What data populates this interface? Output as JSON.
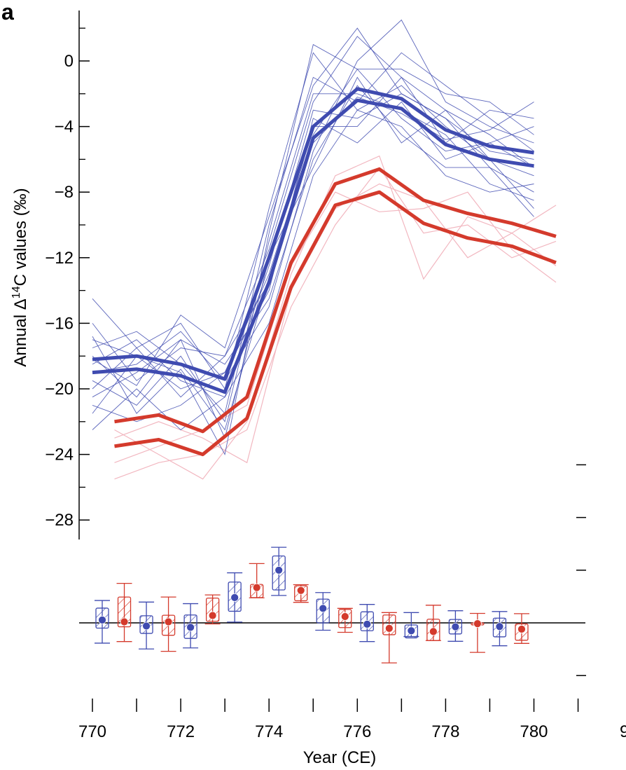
{
  "panel_label": "a",
  "colors": {
    "blue": "#3f4bb0",
    "blue_thin": "#3f4bb0",
    "red": "#d43a2c",
    "pink": "#f2b7c0",
    "axis": "#000000"
  },
  "chart_data": [
    {
      "type": "line",
      "ylabel": "Annual Δ14C values (‰)",
      "ylabel_parts": {
        "pre": "Annual Δ",
        "sup": "14",
        "post": "C values (‰)"
      },
      "xlabel": "Year (CE)",
      "xlim": [
        770,
        781
      ],
      "ylim": [
        -29,
        3
      ],
      "yticks": [
        0,
        -4,
        -8,
        -12,
        -16,
        -20,
        -24,
        -28
      ],
      "ytick_labels": [
        "0",
        "−4",
        "−8",
        "−12",
        "−16",
        "−20",
        "−24",
        "−28"
      ],
      "xticks": [
        770,
        772,
        774,
        776,
        778,
        780
      ],
      "xtick_labels": [
        "770",
        "772",
        "774",
        "776",
        "778",
        "780"
      ],
      "x_partial_label": "9",
      "series": [
        {
          "color": "blue",
          "x": [
            770,
            771,
            772,
            773,
            774,
            775,
            776,
            777,
            778,
            779,
            780
          ],
          "values": [
            -18.2,
            -18.0,
            -18.5,
            -19.4,
            -12.0,
            -4.0,
            -1.7,
            -2.3,
            -4.2,
            -5.2,
            -5.6
          ]
        },
        {
          "color": "blue",
          "x": [
            770,
            771,
            772,
            773,
            774,
            775,
            776,
            777,
            778,
            779,
            780
          ],
          "values": [
            -19.0,
            -18.8,
            -19.2,
            -20.2,
            -13.5,
            -4.7,
            -2.4,
            -2.9,
            -5.1,
            -6.0,
            -6.4
          ]
        },
        {
          "color": "red",
          "x": [
            770.5,
            771.5,
            772.5,
            773.5,
            774.5,
            775.5,
            776.5,
            777.5,
            778.5,
            779.5,
            780.5
          ],
          "values": [
            -22.0,
            -21.6,
            -22.6,
            -20.5,
            -12.3,
            -7.5,
            -6.6,
            -8.5,
            -9.3,
            -9.9,
            -10.7
          ]
        },
        {
          "color": "red",
          "x": [
            770.5,
            771.5,
            772.5,
            773.5,
            774.5,
            775.5,
            776.5,
            777.5,
            778.5,
            779.5,
            780.5
          ],
          "values": [
            -23.5,
            -23.1,
            -24.0,
            -21.8,
            -13.8,
            -8.8,
            -8.0,
            -9.9,
            -10.8,
            -11.3,
            -12.3
          ]
        }
      ],
      "individual_blue_series": [
        [
          -14.5,
          -17.5,
          -16.0,
          -20.0,
          -9.0,
          0.5,
          -3.0,
          -1.5,
          -4.0,
          -6.0,
          -7.0
        ],
        [
          -16.0,
          -19.5,
          -17.5,
          -18.0,
          -11.5,
          -2.5,
          1.5,
          -1.0,
          -3.0,
          -4.5,
          -6.5
        ],
        [
          -17.0,
          -18.0,
          -20.0,
          -19.0,
          -13.0,
          -4.5,
          -0.5,
          -3.5,
          -5.5,
          -5.0,
          -4.0
        ],
        [
          -17.5,
          -16.5,
          -18.5,
          -21.5,
          -10.0,
          -1.0,
          -2.5,
          0.5,
          -1.5,
          -3.5,
          -5.5
        ],
        [
          -18.0,
          -20.5,
          -17.0,
          -18.5,
          -14.5,
          -6.0,
          -1.5,
          -4.5,
          -6.5,
          -6.5,
          -8.0
        ],
        [
          -18.5,
          -17.0,
          -19.5,
          -20.5,
          -12.5,
          -3.0,
          -3.5,
          -2.0,
          -3.5,
          -5.5,
          -6.0
        ],
        [
          -19.0,
          -18.5,
          -16.5,
          -19.5,
          -15.0,
          -5.5,
          0.0,
          2.5,
          -2.5,
          -4.0,
          -5.0
        ],
        [
          -19.5,
          -21.0,
          -18.0,
          -22.0,
          -11.0,
          -2.0,
          -2.0,
          -3.0,
          -4.5,
          -7.5,
          -8.5
        ],
        [
          -20.0,
          -17.5,
          -20.5,
          -18.0,
          -13.5,
          -4.0,
          -4.0,
          -1.0,
          -5.0,
          -3.0,
          -3.5
        ],
        [
          -20.5,
          -19.0,
          -17.0,
          -23.0,
          -12.0,
          -6.5,
          -1.0,
          -5.0,
          -3.0,
          -6.0,
          -9.0
        ],
        [
          -21.0,
          -22.0,
          -21.0,
          -19.0,
          -14.0,
          -3.5,
          -5.0,
          -2.5,
          -6.0,
          -5.0,
          -6.5
        ],
        [
          -21.5,
          -18.0,
          -19.0,
          -24.0,
          -10.5,
          1.0,
          -0.5,
          -0.5,
          -2.0,
          -2.5,
          -4.5
        ],
        [
          -22.5,
          -20.0,
          -22.5,
          -20.5,
          -16.0,
          -7.0,
          -3.0,
          -4.0,
          -7.0,
          -8.0,
          -7.5
        ],
        [
          -18.2,
          -19.8,
          -15.5,
          -17.5,
          -9.5,
          -1.5,
          2.0,
          -2.0,
          -3.5,
          -6.5,
          -9.5
        ],
        [
          -16.8,
          -21.5,
          -18.8,
          -22.5,
          -13.2,
          -5.0,
          -2.2,
          -3.2,
          -4.8,
          -4.2,
          -2.5
        ]
      ],
      "individual_red_series": [
        [
          -22.5,
          -24.0,
          -25.5,
          -22.0,
          -13.0,
          -7.0,
          -5.8,
          -13.3,
          -9.5,
          -10.5,
          -8.8
        ],
        [
          -23.0,
          -22.0,
          -23.0,
          -24.5,
          -14.0,
          -9.0,
          -7.5,
          -8.5,
          -12.0,
          -10.5,
          -12.5
        ],
        [
          -24.5,
          -23.5,
          -22.5,
          -21.0,
          -12.5,
          -8.0,
          -9.2,
          -9.0,
          -8.0,
          -11.5,
          -13.5
        ],
        [
          -25.5,
          -24.5,
          -24.0,
          -22.5,
          -15.0,
          -10.0,
          -6.5,
          -10.5,
          -10.0,
          -12.0,
          -11.0
        ]
      ]
    },
    {
      "type": "box",
      "description_series": [
        {
          "color": "blue",
          "x": [
            770,
            771,
            772,
            773,
            774,
            775,
            776,
            777,
            778,
            779
          ],
          "mean": [
            1.1,
            -1.2,
            -1.7,
            9.6,
            20.0,
            5.5,
            -0.5,
            -3.0,
            -1.5,
            -1.4
          ]
        },
        {
          "color": "red",
          "x": [
            770.5,
            771.5,
            772.5,
            773.5,
            774.5,
            775.5,
            776.5,
            777.5,
            778.5,
            779.5
          ],
          "mean": [
            0.4,
            0.4,
            2.8,
            13.4,
            12.3,
            2.4,
            -2.1,
            -3.3,
            -0.3,
            -2.4
          ]
        }
      ],
      "boxes": [
        {
          "color": "blue",
          "x": 770.0,
          "whisker": [
            -7.7,
            8.5
          ],
          "box": [
            -2.0,
            5.6
          ],
          "mean": 1.1
        },
        {
          "color": "red",
          "x": 770.5,
          "whisker": [
            -7.1,
            15.0
          ],
          "box": [
            -1.5,
            9.8
          ],
          "mean": 0.4
        },
        {
          "color": "blue",
          "x": 771.0,
          "whisker": [
            -9.9,
            7.9
          ],
          "box": [
            -4.0,
            2.7
          ],
          "mean": -1.2
        },
        {
          "color": "red",
          "x": 771.5,
          "whisker": [
            -10.8,
            9.8
          ],
          "box": [
            -4.7,
            2.9
          ],
          "mean": 0.4
        },
        {
          "color": "blue",
          "x": 772.0,
          "whisker": [
            -9.5,
            7.3
          ],
          "box": [
            -5.9,
            3.0
          ],
          "mean": -1.7
        },
        {
          "color": "red",
          "x": 772.5,
          "whisker": [
            -0.4,
            10.6
          ],
          "box": [
            0.6,
            9.4
          ],
          "mean": 2.8
        },
        {
          "color": "blue",
          "x": 773.0,
          "whisker": [
            0.3,
            19.0
          ],
          "box": [
            4.4,
            15.5
          ],
          "mean": 9.6
        },
        {
          "color": "red",
          "x": 773.5,
          "whisker": [
            9.5,
            22.5
          ],
          "box": [
            9.6,
            14.6
          ],
          "mean": 13.4
        },
        {
          "color": "blue",
          "x": 774.0,
          "whisker": [
            10.4,
            28.7
          ],
          "box": [
            12.5,
            25.4
          ],
          "mean": 20.0
        },
        {
          "color": "red",
          "x": 774.5,
          "whisker": [
            7.8,
            14.5
          ],
          "box": [
            8.4,
            14.1
          ],
          "mean": 12.3
        },
        {
          "color": "blue",
          "x": 775.0,
          "whisker": [
            -2.8,
            11.5
          ],
          "box": [
            0.0,
            9.0
          ],
          "mean": 5.5
        },
        {
          "color": "red",
          "x": 775.5,
          "whisker": [
            -3.6,
            5.5
          ],
          "box": [
            -1.8,
            5.1
          ],
          "mean": 2.4
        },
        {
          "color": "blue",
          "x": 776.0,
          "whisker": [
            -7.1,
            7.0
          ],
          "box": [
            -3.0,
            4.2
          ],
          "mean": -0.5
        },
        {
          "color": "red",
          "x": 776.5,
          "whisker": [
            -15.2,
            3.9
          ],
          "box": [
            -4.5,
            3.0
          ],
          "mean": -2.1
        },
        {
          "color": "blue",
          "x": 777.0,
          "whisker": [
            -5.2,
            3.9
          ],
          "box": [
            -5.7,
            -0.8
          ],
          "mean": -3.0
        },
        {
          "color": "red",
          "x": 777.5,
          "whisker": [
            -6.7,
            6.7
          ],
          "box": [
            -6.7,
            1.4
          ],
          "mean": -3.3
        },
        {
          "color": "blue",
          "x": 778.0,
          "whisker": [
            -7.0,
            4.6
          ],
          "box": [
            -4.2,
            1.3
          ],
          "mean": -1.5
        },
        {
          "color": "red",
          "x": 778.5,
          "whisker": [
            -11.2,
            3.6
          ],
          "box": [
            -0.8,
            0.0
          ],
          "mean": -0.3
        },
        {
          "color": "blue",
          "x": 779.0,
          "whisker": [
            -8.7,
            4.3
          ],
          "box": [
            -5.3,
            1.8
          ],
          "mean": -1.4
        },
        {
          "color": "red",
          "x": 779.5,
          "whisker": [
            -7.8,
            3.5
          ],
          "box": [
            -6.6,
            -0.4
          ],
          "mean": -2.4
        }
      ],
      "zero_line": 0
    }
  ]
}
